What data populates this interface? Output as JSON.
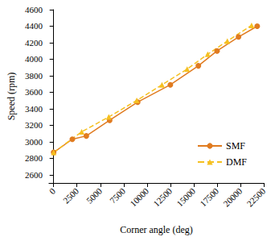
{
  "chart_data": {
    "type": "line",
    "x_label": "Corner angle (deg)",
    "y_label": "Speed (rpm)",
    "xlim": [
      -500,
      22500
    ],
    "xticks": [
      0,
      2500,
      5000,
      7500,
      10000,
      12500,
      15000,
      17500,
      20000,
      22500
    ],
    "ylim": [
      2500,
      4600
    ],
    "yticks": [
      2600,
      2800,
      3000,
      3200,
      3400,
      3600,
      3800,
      4000,
      4200,
      4400,
      4600
    ],
    "grid": false,
    "legend": "right",
    "series": [
      {
        "name": "SMF",
        "color": "#e07b20",
        "marker": "circle",
        "line_style": "solid",
        "x": [
          0,
          2000,
          3500,
          6000,
          9000,
          12500,
          15500,
          17500,
          19800,
          21800
        ],
        "values": [
          2870,
          3030,
          3070,
          3260,
          3480,
          3690,
          3920,
          4100,
          4270,
          4400
        ]
      },
      {
        "name": "DMF",
        "color": "#f5c020",
        "marker": "triangle",
        "line_style": "dashed",
        "x": [
          0,
          3000,
          5900,
          8900,
          11600,
          14300,
          16500,
          18600,
          21200
        ],
        "values": [
          2870,
          3120,
          3300,
          3500,
          3690,
          3880,
          4060,
          4220,
          4410
        ]
      }
    ]
  }
}
